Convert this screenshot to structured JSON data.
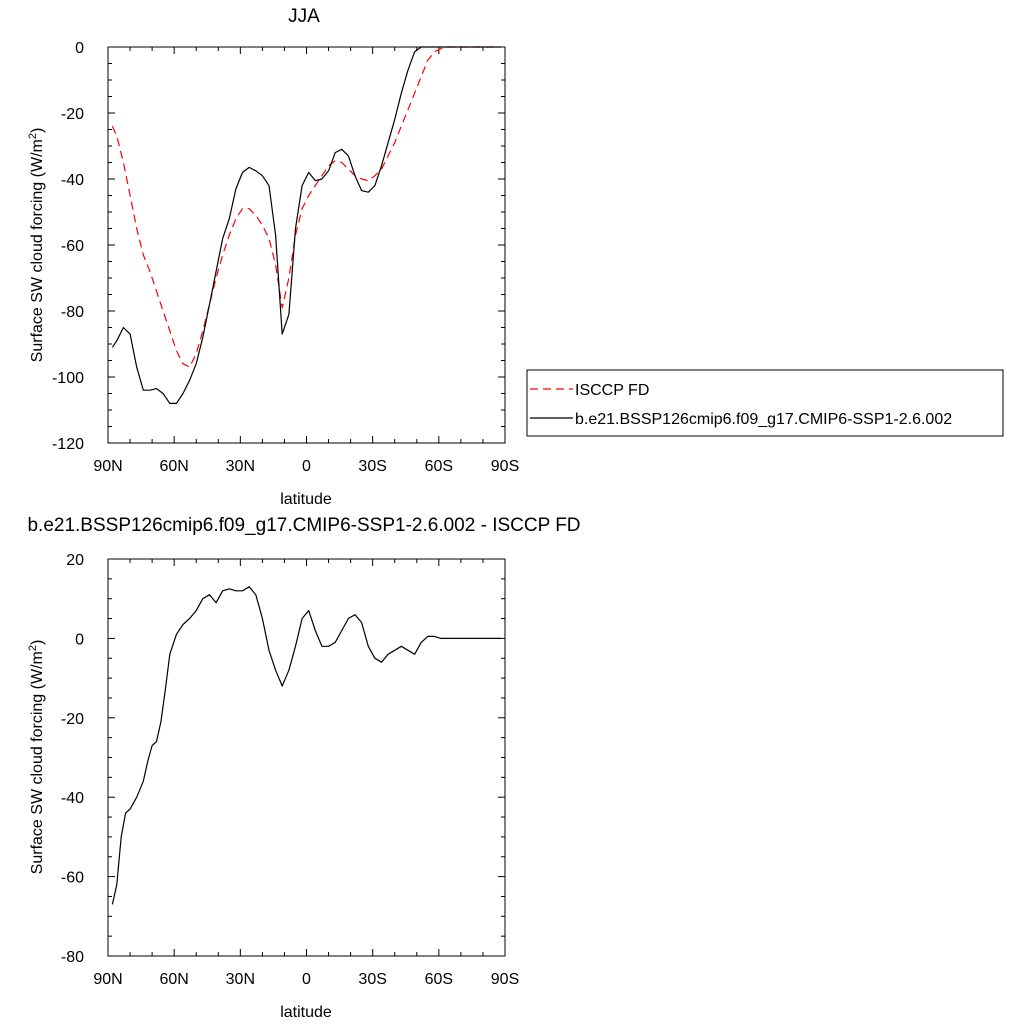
{
  "chart_data": [
    {
      "type": "line",
      "title": "JJA",
      "xlabel": "latitude",
      "ylabel": "Surface SW cloud forcing (W/m²)",
      "ylabel_prefix": "Surface SW cloud forcing (W/m",
      "ylabel_sup": "2",
      "ylabel_suffix": ")",
      "xlim": [
        90,
        -90
      ],
      "ylim": [
        -120,
        0
      ],
      "xtick_values": [
        90,
        60,
        30,
        0,
        -30,
        -60,
        -90
      ],
      "xtick_labels": [
        "90N",
        "60N",
        "30N",
        "0",
        "30S",
        "60S",
        "90S"
      ],
      "ytick_values": [
        0,
        -20,
        -40,
        -60,
        -80,
        -100,
        -120
      ],
      "ytick_labels": [
        "0",
        "-20",
        "-40",
        "-60",
        "-80",
        "-100",
        "-120"
      ],
      "legend_position": "outside-right",
      "series": [
        {
          "name": "ISCCP FD",
          "color": "#ff0000",
          "style": "dashed",
          "x": [
            88,
            86,
            83,
            80,
            77,
            74,
            71,
            68,
            65,
            62,
            59,
            56,
            53,
            50,
            47,
            44,
            41,
            38,
            35,
            32,
            29,
            26,
            23,
            20,
            17,
            14,
            11,
            8,
            5,
            2,
            -1,
            -4,
            -7,
            -10,
            -13,
            -16,
            -19,
            -22,
            -25,
            -28,
            -31,
            -34,
            -37,
            -40,
            -43,
            -46,
            -49,
            -52,
            -55,
            -58,
            -61,
            -64,
            -67,
            -70,
            -73,
            -76,
            -79,
            -82,
            -85,
            -88
          ],
          "y": [
            -24,
            -27,
            -35,
            -45,
            -55,
            -63,
            -68,
            -74,
            -80,
            -86,
            -92,
            -96,
            -97,
            -93,
            -86,
            -78,
            -70,
            -63,
            -57,
            -52,
            -49,
            -49,
            -51,
            -54,
            -58,
            -66,
            -79,
            -70,
            -57,
            -49,
            -45,
            -42,
            -39,
            -36,
            -34.5,
            -35,
            -37,
            -39,
            -40,
            -40.5,
            -39,
            -37,
            -33,
            -29,
            -24,
            -19,
            -14,
            -9,
            -4,
            -1.5,
            -0.5,
            0,
            0,
            0,
            0,
            0,
            0,
            0,
            0,
            0
          ]
        },
        {
          "name": "b.e21.BSSP126cmip6.f09_g17.CMIP6-SSP1-2.6.002",
          "color": "#000000",
          "style": "solid",
          "x": [
            88,
            86,
            83,
            80,
            77,
            74,
            71,
            68,
            65,
            62,
            59,
            56,
            53,
            50,
            47,
            44,
            41,
            38,
            35,
            32,
            29,
            26,
            23,
            20,
            17,
            14,
            11,
            8,
            5,
            2,
            -1,
            -4,
            -7,
            -10,
            -13,
            -16,
            -19,
            -22,
            -25,
            -28,
            -31,
            -34,
            -37,
            -40,
            -43,
            -46,
            -49,
            -52,
            -55,
            -58,
            -61,
            -64,
            -67,
            -70,
            -73,
            -76,
            -79,
            -82,
            -85,
            -88
          ],
          "y": [
            -91,
            -89,
            -85,
            -87,
            -97,
            -104,
            -104,
            -103.5,
            -105,
            -108,
            -108,
            -105,
            -101,
            -96,
            -88,
            -78,
            -68,
            -58,
            -52,
            -43,
            -38,
            -36.5,
            -37.5,
            -39,
            -42,
            -57,
            -87,
            -81,
            -55,
            -42,
            -38,
            -40.5,
            -40,
            -37.5,
            -32,
            -31,
            -33,
            -39,
            -43.5,
            -44,
            -42,
            -36,
            -29,
            -22,
            -14,
            -7,
            -1.5,
            0,
            0,
            0,
            0,
            0,
            0,
            0,
            0,
            0,
            0,
            0,
            0,
            0
          ]
        }
      ]
    },
    {
      "type": "line",
      "title": "b.e21.BSSP126cmip6.f09_g17.CMIP6-SSP1-2.6.002 - ISCCP FD",
      "xlabel": "latitude",
      "ylabel": "Surface SW cloud forcing (W/m²)",
      "ylabel_prefix": "Surface SW cloud forcing (W/m",
      "ylabel_sup": "2",
      "ylabel_suffix": ")",
      "xlim": [
        90,
        -90
      ],
      "ylim": [
        -80,
        20
      ],
      "xtick_values": [
        90,
        60,
        30,
        0,
        -30,
        -60,
        -90
      ],
      "xtick_labels": [
        "90N",
        "60N",
        "30N",
        "0",
        "30S",
        "60S",
        "90S"
      ],
      "ytick_values": [
        20,
        0,
        -20,
        -40,
        -60,
        -80
      ],
      "ytick_labels": [
        "20",
        "0",
        "-20",
        "-40",
        "-60",
        "-80"
      ],
      "series": [
        {
          "color": "#000000",
          "style": "solid",
          "x": [
            88,
            86,
            84,
            82,
            80,
            77,
            74,
            72,
            70,
            68,
            66,
            64,
            62,
            59,
            56,
            53,
            50,
            47,
            44,
            41,
            38,
            35,
            32,
            29,
            26,
            23,
            20,
            17,
            14,
            11,
            8,
            5,
            2,
            -1,
            -4,
            -7,
            -10,
            -13,
            -16,
            -19,
            -22,
            -25,
            -28,
            -31,
            -34,
            -37,
            -40,
            -43,
            -46,
            -49,
            -52,
            -55,
            -58,
            -61,
            -64,
            -67,
            -70,
            -73,
            -76,
            -79,
            -82,
            -85,
            -88
          ],
          "y": [
            -67,
            -62,
            -50,
            -44,
            -43,
            -40,
            -36,
            -31,
            -27,
            -26,
            -21,
            -13,
            -4,
            1,
            3.5,
            5,
            7,
            10,
            11,
            9,
            12,
            12.5,
            12,
            12,
            13,
            11,
            5,
            -3,
            -8,
            -12,
            -8,
            -2,
            5,
            7,
            2,
            -2,
            -2,
            -1,
            2,
            5,
            6,
            4,
            -2,
            -5,
            -6,
            -4,
            -3,
            -2,
            -3,
            -4,
            -1,
            0.5,
            0.5,
            0,
            0,
            0,
            0,
            0,
            0,
            0,
            0,
            0,
            0
          ]
        }
      ]
    }
  ]
}
